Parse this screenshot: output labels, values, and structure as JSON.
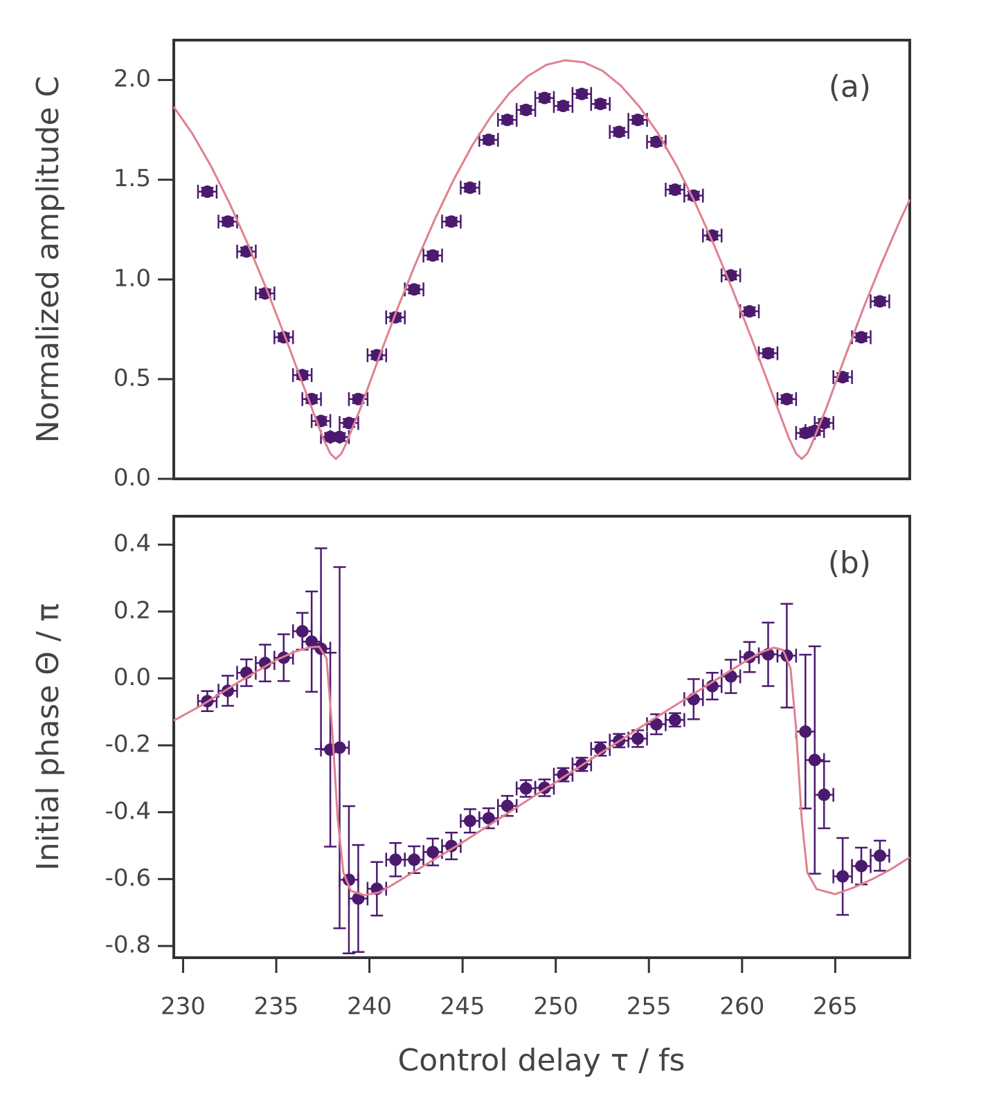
{
  "chart_data": [
    {
      "type": "scatter",
      "annotation": "(a)",
      "ylabel": "Normalized amplitude C",
      "xlim": [
        229.5,
        269
      ],
      "ylim": [
        0,
        2.2
      ],
      "yticks": [
        {
          "value": 0,
          "label": "0.0"
        },
        0.5,
        {
          "value": 1,
          "label": "1.0"
        },
        1.5,
        {
          "value": 2,
          "label": "2.0"
        }
      ],
      "series": [
        {
          "type": "scatter",
          "color": "#4b1a6e",
          "xerr": 0.5,
          "yerr": 0.02,
          "x": [
            231.3,
            232.4,
            233.4,
            234.4,
            235.4,
            236.4,
            236.9,
            237.4,
            237.9,
            238.4,
            238.9,
            239.4,
            240.4,
            241.4,
            242.4,
            243.4,
            244.4,
            245.4,
            246.4,
            247.4,
            248.4,
            249.4,
            250.4,
            251.4,
            252.4,
            253.4,
            254.4,
            255.4,
            256.4,
            257.4,
            258.4,
            259.4,
            260.4,
            261.4,
            262.4,
            263.4,
            263.9,
            264.4,
            265.4,
            266.4,
            267.4
          ],
          "values": [
            1.44,
            1.29,
            1.14,
            0.93,
            0.71,
            0.52,
            0.4,
            0.29,
            0.21,
            0.21,
            0.28,
            0.4,
            0.62,
            0.81,
            0.95,
            1.12,
            1.29,
            1.46,
            1.7,
            1.8,
            1.85,
            1.91,
            1.87,
            1.93,
            1.88,
            1.74,
            1.8,
            1.69,
            1.45,
            1.42,
            1.22,
            1.02,
            0.84,
            0.63,
            0.4,
            0.23,
            0.24,
            0.28,
            0.51,
            0.71,
            0.89
          ]
        },
        {
          "type": "line",
          "color": "#e0808f",
          "x": [
            229.5,
            230.5,
            231.5,
            232.5,
            233.5,
            234.5,
            235.5,
            236.5,
            237.5,
            237.7,
            237.9,
            238.2,
            238.5,
            238.7,
            239.5,
            240.5,
            241.5,
            242.5,
            243.5,
            244.5,
            245.5,
            246.5,
            247.5,
            248.5,
            249.5,
            250.5,
            251.5,
            252.5,
            253.5,
            254.5,
            255.5,
            256.5,
            257.5,
            258.5,
            259.5,
            260.5,
            261.5,
            262.5,
            262.7,
            262.9,
            263.2,
            263.5,
            263.7,
            264.5,
            265.5,
            266.5,
            267.5,
            268.5,
            269
          ],
          "values": [
            1.865,
            1.731,
            1.568,
            1.381,
            1.172,
            0.946,
            0.706,
            0.456,
            0.207,
            0.167,
            0.127,
            0.1,
            0.127,
            0.167,
            0.349,
            0.605,
            0.853,
            1.084,
            1.3,
            1.496,
            1.669,
            1.814,
            1.933,
            2.02,
            2.076,
            2.099,
            2.089,
            2.047,
            1.971,
            1.865,
            1.731,
            1.568,
            1.381,
            1.172,
            0.946,
            0.706,
            0.456,
            0.207,
            0.167,
            0.127,
            0.1,
            0.127,
            0.167,
            0.349,
            0.605,
            0.853,
            1.084,
            1.3,
            1.4
          ]
        }
      ]
    },
    {
      "type": "scatter",
      "annotation": "(b)",
      "ylabel": "Initial phase Θ / π",
      "xlabel": "Control delay τ / fs",
      "xlim": [
        229.5,
        269
      ],
      "ylim": [
        -0.835,
        0.485
      ],
      "xticks": [
        230,
        235,
        240,
        245,
        250,
        255,
        260,
        265
      ],
      "yticks": [
        -0.8,
        -0.6,
        -0.4,
        -0.2,
        {
          "value": 0,
          "label": "0.0"
        },
        0.2,
        0.4
      ],
      "series": [
        {
          "type": "scatter",
          "color": "#4b1a6e",
          "xerr": 0.5,
          "x": [
            231.3,
            232.4,
            233.4,
            234.4,
            235.4,
            236.4,
            236.9,
            237.4,
            237.9,
            238.4,
            238.9,
            239.4,
            240.4,
            241.4,
            242.4,
            243.4,
            244.4,
            245.4,
            246.4,
            247.4,
            248.4,
            249.4,
            250.4,
            251.4,
            252.4,
            253.4,
            254.4,
            255.4,
            256.4,
            257.4,
            258.4,
            259.4,
            260.4,
            261.4,
            262.4,
            263.4,
            263.9,
            264.4,
            265.4,
            266.4,
            267.4
          ],
          "values": [
            -0.068,
            -0.037,
            0.017,
            0.046,
            0.062,
            0.141,
            0.11,
            0.089,
            -0.213,
            -0.207,
            -0.602,
            -0.658,
            -0.629,
            -0.542,
            -0.542,
            -0.519,
            -0.501,
            -0.426,
            -0.418,
            -0.381,
            -0.329,
            -0.327,
            -0.288,
            -0.257,
            -0.211,
            -0.186,
            -0.18,
            -0.137,
            -0.124,
            -0.062,
            -0.023,
            0.006,
            0.064,
            0.072,
            0.068,
            -0.159,
            -0.244,
            -0.348,
            -0.592,
            -0.561,
            -0.53
          ],
          "yerr": [
            0.03,
            0.045,
            0.04,
            0.055,
            0.07,
            0.055,
            0.15,
            0.3,
            0.29,
            0.54,
            0.22,
            0.16,
            0.08,
            0.05,
            0.04,
            0.04,
            0.04,
            0.035,
            0.03,
            0.03,
            0.025,
            0.025,
            0.02,
            0.02,
            0.02,
            0.02,
            0.025,
            0.03,
            0.02,
            0.06,
            0.04,
            0.05,
            0.045,
            0.095,
            0.155,
            0.23,
            0.34,
            0.1,
            0.115,
            0.055,
            0.045
          ]
        },
        {
          "type": "line",
          "color": "#e0808f",
          "x": [
            229.5,
            231,
            233,
            235,
            236,
            236.8,
            237.3,
            237.7,
            238,
            238.3,
            238.6,
            239,
            239.7,
            240.5,
            241,
            245,
            250,
            255,
            258,
            260,
            261,
            261.7,
            262.2,
            262.6,
            262.9,
            263.2,
            263.5,
            264,
            265,
            266,
            267,
            268,
            269
          ],
          "values": [
            -0.126,
            -0.08,
            -0.01,
            0.055,
            0.08,
            0.093,
            0.095,
            0.06,
            -0.15,
            -0.42,
            -0.58,
            -0.635,
            -0.648,
            -0.64,
            -0.625,
            -0.49,
            -0.31,
            -0.13,
            -0.025,
            0.045,
            0.078,
            0.092,
            0.085,
            0.03,
            -0.15,
            -0.42,
            -0.58,
            -0.63,
            -0.645,
            -0.625,
            -0.6,
            -0.57,
            -0.535
          ]
        }
      ]
    }
  ]
}
